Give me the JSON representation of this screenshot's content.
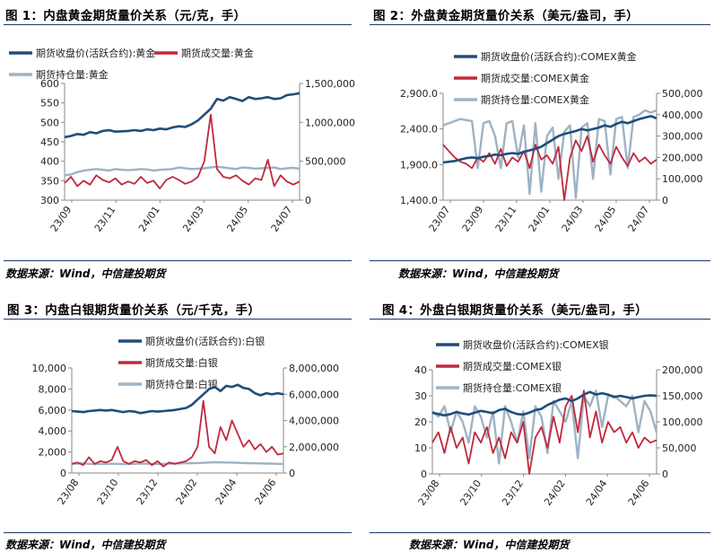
{
  "colors": {
    "close": "#1f4e79",
    "volume": "#c0283c",
    "oi": "#9eb3c4",
    "rule": "#1f3864"
  },
  "charts": [
    {
      "title": "图 1：内盘黄金期货量价关系（元/克，手）",
      "source": "数据来源：Wind，中信建投期货",
      "chart_data": {
        "type": "line",
        "series": [
          {
            "name": "期货收盘价(活跃合约):黄金",
            "axis": "left",
            "role": "close",
            "values": [
              462,
              465,
              470,
              468,
              475,
              472,
              478,
              480,
              476,
              477,
              478,
              480,
              478,
              482,
              480,
              484,
              482,
              487,
              490,
              488,
              495,
              505,
              520,
              535,
              560,
              556,
              565,
              560,
              555,
              565,
              560,
              562,
              565,
              560,
              562,
              570,
              572,
              575
            ]
          },
          {
            "name": "期货成交量:黄金",
            "axis": "right",
            "role": "volume",
            "values": [
              220000,
              300000,
              180000,
              250000,
              200000,
              320000,
              260000,
              230000,
              280000,
              200000,
              240000,
              210000,
              300000,
              220000,
              250000,
              150000,
              260000,
              300000,
              260000,
              210000,
              240000,
              300000,
              500000,
              1100000,
              400000,
              300000,
              280000,
              320000,
              250000,
              200000,
              280000,
              260000,
              520000,
              180000,
              320000,
              240000,
              200000,
              240000
            ]
          },
          {
            "name": "期货持仓量:黄金",
            "axis": "right",
            "role": "oi",
            "values": [
              320000,
              330000,
              360000,
              380000,
              390000,
              400000,
              390000,
              380000,
              400000,
              390000,
              385000,
              390000,
              400000,
              395000,
              380000,
              390000,
              395000,
              400000,
              420000,
              410000,
              400000,
              405000,
              410000,
              420000,
              430000,
              420000,
              410000,
              400000,
              420000,
              415000,
              405000,
              410000,
              415000,
              420000,
              400000,
              410000,
              415000,
              405000
            ]
          }
        ],
        "x_labels": [
          "23/09",
          "23/11",
          "24/01",
          "24/03",
          "24/05",
          "24/07"
        ],
        "left_axis": {
          "ticks": [
            "600",
            "550",
            "500",
            "450",
            "400",
            "350",
            "300"
          ],
          "range": [
            300,
            600
          ]
        },
        "right_axis": {
          "ticks": [
            "1,500,000",
            "1,000,000",
            "500,000",
            "0"
          ],
          "range": [
            0,
            1500000
          ]
        }
      }
    },
    {
      "title": "图 2：外盘黄金期货量价关系（美元/盎司，手）",
      "source": "数据来源：Wind，中信建投期货",
      "chart_data": {
        "type": "line",
        "series": [
          {
            "name": "期货收盘价(活跃合约):COMEX黄金",
            "axis": "left",
            "role": "close",
            "values": [
              1930,
              1940,
              1950,
              1970,
              1990,
              2000,
              1990,
              2010,
              2020,
              2040,
              2030,
              2050,
              2060,
              2050,
              2080,
              2100,
              2120,
              2150,
              2200,
              2250,
              2300,
              2330,
              2350,
              2370,
              2400,
              2380,
              2400,
              2420,
              2450,
              2430,
              2470,
              2500,
              2480,
              2510,
              2540,
              2560,
              2580,
              2550
            ]
          },
          {
            "name": "期货成交量:COMEX黄金",
            "axis": "right",
            "role": "volume",
            "values": [
              260000,
              230000,
              200000,
              180000,
              170000,
              150000,
              200000,
              180000,
              220000,
              170000,
              240000,
              160000,
              200000,
              180000,
              230000,
              150000,
              260000,
              190000,
              210000,
              170000,
              250000,
              0,
              200000,
              280000,
              230000,
              300000,
              180000,
              260000,
              210000,
              170000,
              250000,
              200000,
              160000,
              220000,
              180000,
              200000,
              170000,
              190000
            ]
          },
          {
            "name": "期货持仓量:COMEX黄金",
            "axis": "right",
            "role": "oi",
            "values": [
              350000,
              360000,
              370000,
              380000,
              375000,
              370000,
              150000,
              360000,
              370000,
              300000,
              150000,
              360000,
              370000,
              200000,
              350000,
              30000,
              360000,
              40000,
              300000,
              340000,
              100000,
              320000,
              350000,
              10000,
              340000,
              360000,
              100000,
              380000,
              370000,
              120000,
              380000,
              390000,
              150000,
              390000,
              400000,
              420000,
              410000,
              420000
            ]
          }
        ],
        "x_labels": [
          "23/07",
          "23/09",
          "23/11",
          "24/01",
          "24/03",
          "24/05",
          "24/07"
        ],
        "left_axis": {
          "ticks": [
            "2,900.0",
            "2,400.0",
            "1,900.0",
            "1,400.0"
          ],
          "range": [
            1400,
            2900
          ]
        },
        "right_axis": {
          "ticks": [
            "500,000",
            "400,000",
            "300,000",
            "200,000",
            "100,000",
            "0"
          ],
          "range": [
            0,
            500000
          ]
        }
      }
    },
    {
      "title": "图 3：内盘白银期货量价关系（元/千克，手）",
      "source": "数据来源：Wind，中信建投期货",
      "chart_data": {
        "type": "line",
        "series": [
          {
            "name": "期货收盘价(活跃合约):白银",
            "axis": "left",
            "role": "close",
            "values": [
              5900,
              5850,
              5800,
              5900,
              5950,
              6000,
              5950,
              6000,
              5900,
              5800,
              5900,
              5850,
              5700,
              5800,
              5900,
              5850,
              5900,
              5950,
              6000,
              6100,
              6200,
              6500,
              7000,
              7500,
              8000,
              8200,
              7800,
              8300,
              8200,
              8400,
              8100,
              8000,
              7600,
              7400,
              7600,
              7500,
              7600,
              7500
            ]
          },
          {
            "name": "期货成交量:白银",
            "axis": "right",
            "role": "volume",
            "values": [
              700000,
              800000,
              600000,
              1200000,
              700000,
              900000,
              800000,
              1000000,
              2000000,
              900000,
              700000,
              900000,
              800000,
              1000000,
              600000,
              900000,
              500000,
              800000,
              700000,
              800000,
              900000,
              1200000,
              2000000,
              5500000,
              2000000,
              1500000,
              3500000,
              2500000,
              4000000,
              3000000,
              2000000,
              2500000,
              1800000,
              2200000,
              1600000,
              2000000,
              1400000,
              1500000
            ]
          },
          {
            "name": "期货持仓量:白银",
            "axis": "right",
            "role": "oi",
            "values": [
              700000,
              720000,
              740000,
              700000,
              680000,
              700000,
              690000,
              710000,
              700000,
              680000,
              690000,
              700000,
              710000,
              720000,
              700000,
              690000,
              700000,
              710000,
              720000,
              730000,
              740000,
              750000,
              760000,
              780000,
              800000,
              820000,
              810000,
              800000,
              790000,
              780000,
              760000,
              750000,
              740000,
              730000,
              720000,
              710000,
              700000,
              690000
            ]
          }
        ],
        "x_labels": [
          "23/08",
          "23/10",
          "23/12",
          "24/02",
          "24/04",
          "24/06"
        ],
        "left_axis": {
          "ticks": [
            "10,000",
            "8,000",
            "6,000",
            "4,000",
            "2,000",
            "0"
          ],
          "range": [
            0,
            10000
          ]
        },
        "right_axis": {
          "ticks": [
            "8,000,000",
            "6,000,000",
            "4,000,000",
            "2,000,000",
            "0"
          ],
          "range": [
            0,
            8000000
          ]
        }
      }
    },
    {
      "title": "图 4：外盘白银期货量价关系（美元/盎司，手）",
      "source": "数据来源：Wind，中信建投期货",
      "chart_data": {
        "type": "line",
        "series": [
          {
            "name": "期货收盘价(活跃合约):COMEX银",
            "axis": "left",
            "role": "close",
            "values": [
              23.5,
              23.0,
              22.5,
              23.0,
              23.8,
              23.2,
              22.8,
              23.5,
              24.2,
              23.8,
              23.3,
              24.5,
              25.0,
              23.8,
              23.0,
              22.8,
              23.5,
              24.5,
              25.0,
              26.5,
              27.5,
              28.5,
              29.0,
              28.0,
              29.0,
              30.5,
              31.5,
              30.5,
              31.0,
              30.5,
              29.5,
              30.0,
              29.5,
              29.0,
              29.5,
              30.0,
              30.2,
              30.0
            ]
          },
          {
            "name": "期货成交量:COMEX银",
            "axis": "right",
            "role": "volume",
            "values": [
              60000,
              80000,
              40000,
              90000,
              50000,
              70000,
              20000,
              80000,
              60000,
              90000,
              40000,
              70000,
              30000,
              80000,
              60000,
              100000,
              0,
              70000,
              90000,
              50000,
              110000,
              60000,
              130000,
              150000,
              80000,
              160000,
              70000,
              120000,
              60000,
              100000,
              80000,
              90000,
              60000,
              80000,
              50000,
              70000,
              60000,
              65000
            ]
          },
          {
            "name": "期货持仓量:COMEX银",
            "axis": "right",
            "role": "oi",
            "values": [
              120000,
              110000,
              130000,
              80000,
              120000,
              100000,
              60000,
              130000,
              110000,
              70000,
              120000,
              20000,
              130000,
              100000,
              60000,
              120000,
              30000,
              130000,
              110000,
              40000,
              140000,
              120000,
              100000,
              140000,
              30000,
              150000,
              130000,
              160000,
              90000,
              150000,
              150000,
              140000,
              130000,
              150000,
              80000,
              140000,
              120000,
              80000
            ]
          }
        ],
        "x_labels": [
          "23/08",
          "23/10",
          "23/12",
          "24/02",
          "24/04",
          "24/06"
        ],
        "left_axis": {
          "ticks": [
            "40",
            "30",
            "20",
            "10",
            "0"
          ],
          "range": [
            0,
            40
          ]
        },
        "right_axis": {
          "ticks": [
            "200,000",
            "150,000",
            "100,000",
            "50,000",
            "0"
          ],
          "range": [
            0,
            200000
          ]
        }
      }
    }
  ]
}
